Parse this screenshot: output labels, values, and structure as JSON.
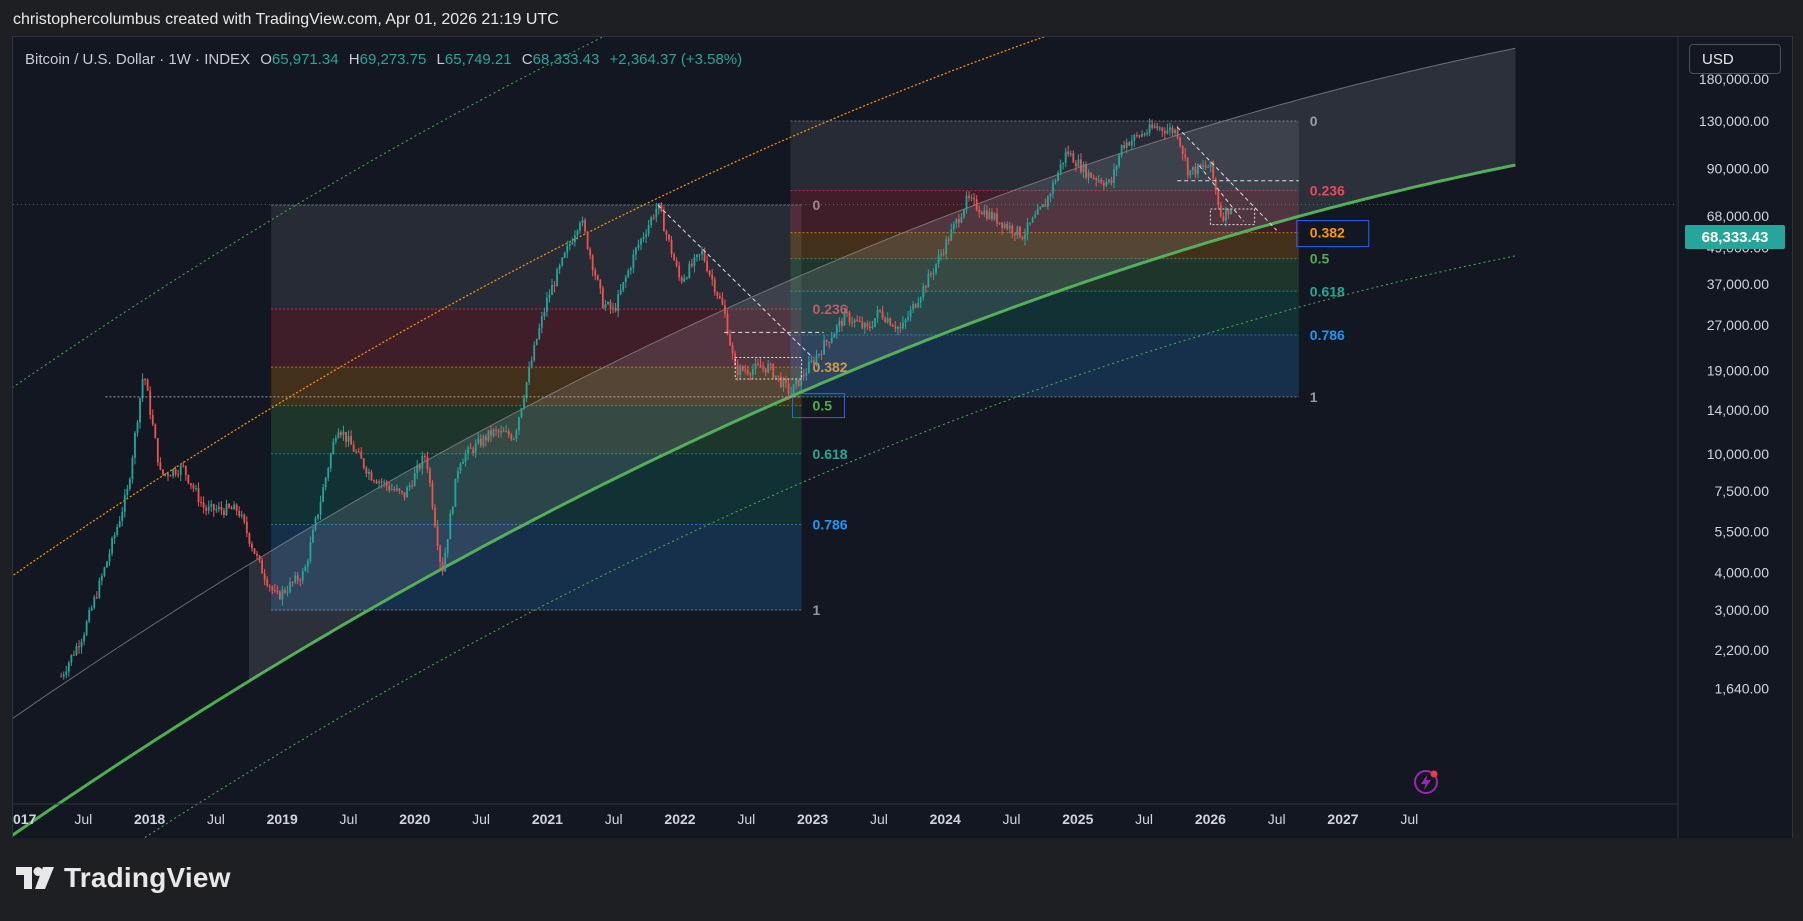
{
  "header": {
    "credit": "christophercolumbus created with TradingView.com, Apr 01, 2026 21:19 UTC"
  },
  "legend": {
    "symbol": "Bitcoin / U.S. Dollar · 1W · INDEX",
    "open_label": "O",
    "open": "65,971.34",
    "high_label": "H",
    "high": "69,273.75",
    "low_label": "L",
    "low": "65,749.21",
    "close_label": "C",
    "close": "68,333.43",
    "change": "+2,364.37 (+3.58%)"
  },
  "currency_button": "USD",
  "last_price": "68,333.43",
  "footer": {
    "brand": "TradingView"
  },
  "colors": {
    "up": "#26a69a",
    "down": "#ef5350",
    "fib_0236": "#f23645",
    "fib_0382": "#ff9800",
    "fib_05": "#4caf50",
    "fib_0618": "#089981",
    "fib_0786": "#2196f3",
    "growth_curve": "#4caf50"
  },
  "chart_data": {
    "type": "candlestick",
    "interval": "1W",
    "y_scale": "log",
    "y_ticks": [
      "180,000.00",
      "130,000.00",
      "90,000.00",
      "68,000.00",
      "49,000.00",
      "37,000.00",
      "27,000.00",
      "19,000.00",
      "14,000.00",
      "10,000.00",
      "7,500.00",
      "5,500.00",
      "4,000.00",
      "3,000.00",
      "2,200.00",
      "1,640.00"
    ],
    "y_tick_values": [
      180000,
      130000,
      90000,
      68000,
      49000,
      37000,
      27000,
      19000,
      14000,
      10000,
      7500,
      5500,
      4000,
      3000,
      2200,
      1640
    ],
    "x_ticks": [
      "017",
      "Jul",
      "2018",
      "Jul",
      "2019",
      "Jul",
      "2020",
      "Jul",
      "2021",
      "Jul",
      "2022",
      "Jul",
      "2023",
      "Jul",
      "2024",
      "Jul",
      "2025",
      "Jul",
      "2026",
      "Jul",
      "2027",
      "Jul"
    ],
    "x_tick_dates": [
      "2017-01",
      "2017-07",
      "2018-01",
      "2018-07",
      "2019-01",
      "2019-07",
      "2020-01",
      "2020-07",
      "2021-01",
      "2021-07",
      "2022-01",
      "2022-07",
      "2023-01",
      "2023-07",
      "2024-01",
      "2024-07",
      "2025-01",
      "2025-07",
      "2026-01",
      "2026-07",
      "2027-01",
      "2027-07"
    ],
    "price_path": [
      [
        "2017-05",
        1800
      ],
      [
        "2017-07",
        2500
      ],
      [
        "2017-09",
        4200
      ],
      [
        "2017-11",
        7500
      ],
      [
        "2017-12-15",
        19000
      ],
      [
        "2018-02",
        8500
      ],
      [
        "2018-04",
        9000
      ],
      [
        "2018-06",
        6500
      ],
      [
        "2018-09",
        6500
      ],
      [
        "2018-11",
        4200
      ],
      [
        "2018-12-15",
        3300
      ],
      [
        "2019-03",
        4000
      ],
      [
        "2019-06",
        12500
      ],
      [
        "2019-09",
        8500
      ],
      [
        "2019-12",
        7200
      ],
      [
        "2020-02",
        10000
      ],
      [
        "2020-03-15",
        4000
      ],
      [
        "2020-05",
        9500
      ],
      [
        "2020-08",
        11800
      ],
      [
        "2020-10",
        11500
      ],
      [
        "2020-12",
        24000
      ],
      [
        "2021-01",
        33000
      ],
      [
        "2021-04",
        62000
      ],
      [
        "2021-06",
        32000
      ],
      [
        "2021-07",
        30000
      ],
      [
        "2021-09",
        48000
      ],
      [
        "2021-11",
        68000
      ],
      [
        "2022-01",
        38000
      ],
      [
        "2022-03",
        47000
      ],
      [
        "2022-05",
        30000
      ],
      [
        "2022-06",
        19000
      ],
      [
        "2022-09",
        19500
      ],
      [
        "2022-11",
        16000
      ],
      [
        "2023-02",
        23000
      ],
      [
        "2023-04",
        29000
      ],
      [
        "2023-06",
        26000
      ],
      [
        "2023-07",
        30000
      ],
      [
        "2023-09",
        26000
      ],
      [
        "2023-12",
        42000
      ],
      [
        "2024-03",
        71000
      ],
      [
        "2024-05",
        63000
      ],
      [
        "2024-08",
        54000
      ],
      [
        "2024-10",
        68000
      ],
      [
        "2024-12",
        103000
      ],
      [
        "2025-02",
        86000
      ],
      [
        "2025-04",
        80000
      ],
      [
        "2025-05",
        108000
      ],
      [
        "2025-08",
        124000
      ],
      [
        "2025-10",
        120000
      ],
      [
        "2025-11",
        88000
      ],
      [
        "2026-01",
        92000
      ],
      [
        "2026-02",
        62000
      ],
      [
        "2026-03",
        68333
      ]
    ],
    "fib_retracements": [
      {
        "levels": [
          {
            "label": "0",
            "price": 68000
          },
          {
            "label": "0.236",
            "price": 30500
          },
          {
            "label": "0.382",
            "price": 19500
          },
          {
            "label": "0.5",
            "price": 14500
          },
          {
            "label": "0.618",
            "price": 10000
          },
          {
            "label": "0.786",
            "price": 5800
          },
          {
            "label": "1",
            "price": 3000
          }
        ],
        "from": "2018-12",
        "to": "2022-12"
      },
      {
        "levels": [
          {
            "label": "0",
            "price": 130000
          },
          {
            "label": "0.236",
            "price": 76000
          },
          {
            "label": "0.382",
            "price": 55000
          },
          {
            "label": "0.5",
            "price": 45000
          },
          {
            "label": "0.618",
            "price": 35000
          },
          {
            "label": "0.786",
            "price": 25000
          },
          {
            "label": "1",
            "price": 15500
          }
        ],
        "from": "2022-11",
        "to": "2026-09"
      }
    ],
    "grid": false,
    "legend_position": "top-left"
  }
}
